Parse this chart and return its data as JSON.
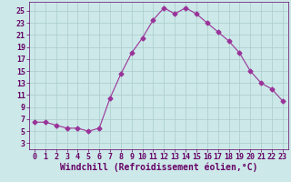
{
  "x": [
    0,
    1,
    2,
    3,
    4,
    5,
    6,
    7,
    8,
    9,
    10,
    11,
    12,
    13,
    14,
    15,
    16,
    17,
    18,
    19,
    20,
    21,
    22,
    23
  ],
  "y": [
    6.5,
    6.5,
    6.0,
    5.5,
    5.5,
    5.0,
    5.5,
    10.5,
    14.5,
    18.0,
    20.5,
    23.5,
    25.5,
    24.5,
    25.5,
    24.5,
    23.0,
    21.5,
    20.0,
    18.0,
    15.0,
    13.0,
    12.0,
    10.0
  ],
  "line_color": "#993399",
  "marker": "D",
  "marker_size": 2.5,
  "bg_color": "#cce8e8",
  "grid_color": "#aacccc",
  "xlabel": "Windchill (Refroidissement éolien,°C)",
  "xlabel_color": "#660066",
  "xlabel_fontsize": 7,
  "tick_color": "#660066",
  "tick_fontsize": 6,
  "yticks": [
    3,
    5,
    7,
    9,
    11,
    13,
    15,
    17,
    19,
    21,
    23,
    25
  ],
  "xticks": [
    0,
    1,
    2,
    3,
    4,
    5,
    6,
    7,
    8,
    9,
    10,
    11,
    12,
    13,
    14,
    15,
    16,
    17,
    18,
    19,
    20,
    21,
    22,
    23
  ],
  "ylim": [
    2.0,
    26.5
  ],
  "xlim": [
    -0.5,
    23.5
  ]
}
